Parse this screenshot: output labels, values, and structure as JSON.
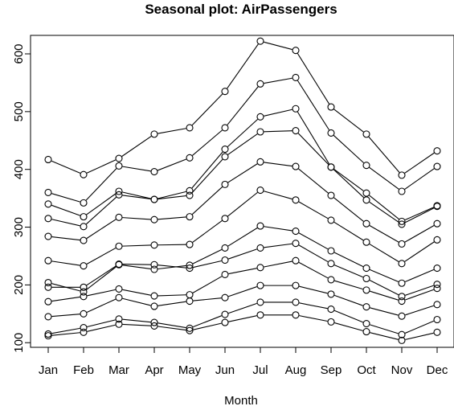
{
  "chart_data": {
    "type": "line",
    "title": "Seasonal plot: AirPassengers",
    "xlabel": "Month",
    "ylabel": "",
    "categories": [
      "Jan",
      "Feb",
      "Mar",
      "Apr",
      "May",
      "Jun",
      "Jul",
      "Aug",
      "Sep",
      "Oct",
      "Nov",
      "Dec"
    ],
    "yticks": [
      100,
      200,
      300,
      400,
      500,
      600
    ],
    "ylim": [
      92,
      632
    ],
    "grid": false,
    "marker": "open-circle",
    "line_color": "#000000",
    "series": [
      {
        "values": [
          112,
          118,
          132,
          129,
          121,
          135,
          148,
          148,
          136,
          119,
          104,
          118
        ]
      },
      {
        "values": [
          115,
          126,
          141,
          135,
          125,
          149,
          170,
          170,
          158,
          133,
          114,
          140
        ]
      },
      {
        "values": [
          145,
          150,
          178,
          163,
          172,
          178,
          199,
          199,
          184,
          162,
          146,
          166
        ]
      },
      {
        "values": [
          171,
          180,
          193,
          181,
          183,
          218,
          230,
          242,
          209,
          191,
          172,
          194
        ]
      },
      {
        "values": [
          196,
          196,
          236,
          235,
          229,
          243,
          264,
          272,
          237,
          211,
          180,
          201
        ]
      },
      {
        "values": [
          204,
          188,
          235,
          227,
          234,
          264,
          302,
          293,
          259,
          229,
          203,
          229
        ]
      },
      {
        "values": [
          242,
          233,
          267,
          269,
          270,
          315,
          364,
          347,
          312,
          274,
          237,
          278
        ]
      },
      {
        "values": [
          284,
          277,
          317,
          313,
          318,
          374,
          413,
          405,
          355,
          306,
          271,
          306
        ]
      },
      {
        "values": [
          315,
          301,
          356,
          348,
          355,
          422,
          465,
          467,
          404,
          347,
          305,
          336
        ]
      },
      {
        "values": [
          340,
          318,
          362,
          348,
          363,
          435,
          491,
          505,
          404,
          359,
          310,
          337
        ]
      },
      {
        "values": [
          360,
          342,
          406,
          396,
          420,
          472,
          548,
          559,
          463,
          407,
          362,
          405
        ]
      },
      {
        "values": [
          417,
          391,
          419,
          461,
          472,
          535,
          622,
          606,
          508,
          461,
          390,
          432
        ]
      }
    ]
  }
}
